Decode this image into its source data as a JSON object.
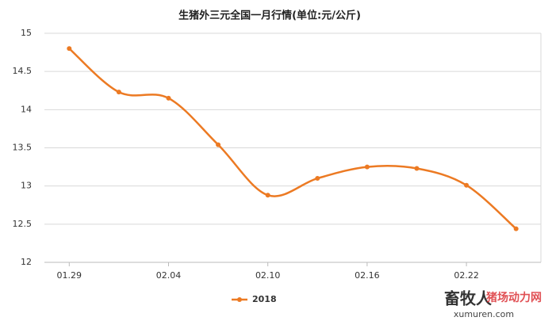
{
  "chart_data": {
    "type": "line",
    "title": "生猪外三元全国一月行情(单位:元/公斤)",
    "categories": [
      "01.29",
      null,
      "02.04",
      null,
      "02.10",
      null,
      "02.16",
      null,
      "02.22",
      null
    ],
    "series": [
      {
        "name": "2018",
        "color": "#ec7a23",
        "values": [
          14.8,
          14.23,
          14.15,
          13.54,
          12.88,
          13.1,
          13.25,
          13.23,
          13.01,
          12.44
        ]
      }
    ],
    "ylim": [
      12,
      15
    ],
    "yticks": [
      12,
      12.5,
      13,
      13.5,
      14,
      14.5,
      15
    ],
    "grid": true,
    "smooth": true,
    "legend": "bottom",
    "annotations": [
      "畜牧人",
      "xumuren.com",
      "猪场动力网"
    ]
  }
}
